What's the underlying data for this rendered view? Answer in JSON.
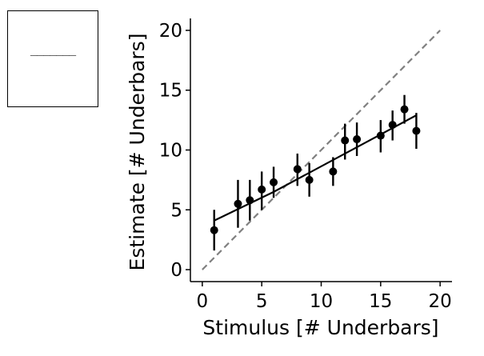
{
  "stimulus_panel": {
    "text": "_______"
  },
  "chart_data": {
    "type": "scatter",
    "title": "",
    "xlabel": "Stimulus [# Underbars]",
    "ylabel": "Estimate [# Underbars]",
    "xlim": [
      -1,
      21
    ],
    "ylim": [
      -1,
      21
    ],
    "xticks": [
      0,
      5,
      10,
      15,
      20
    ],
    "yticks": [
      0,
      5,
      10,
      15,
      20
    ],
    "grid": false,
    "legend": "none",
    "series": [
      {
        "kind": "points-with-errorbars",
        "color": "#000000",
        "points": [
          {
            "x": 1,
            "y": 3.3,
            "lo": 1.6,
            "hi": 5.0
          },
          {
            "x": 3,
            "y": 5.5,
            "lo": 3.5,
            "hi": 7.5
          },
          {
            "x": 4,
            "y": 5.8,
            "lo": 4.1,
            "hi": 7.5
          },
          {
            "x": 5,
            "y": 6.7,
            "lo": 5.0,
            "hi": 8.2
          },
          {
            "x": 6,
            "y": 7.3,
            "lo": 6.0,
            "hi": 8.6
          },
          {
            "x": 8,
            "y": 8.4,
            "lo": 7.0,
            "hi": 9.7
          },
          {
            "x": 9,
            "y": 7.5,
            "lo": 6.1,
            "hi": 8.9
          },
          {
            "x": 11,
            "y": 8.2,
            "lo": 7.0,
            "hi": 9.4
          },
          {
            "x": 12,
            "y": 10.8,
            "lo": 9.2,
            "hi": 12.2
          },
          {
            "x": 13,
            "y": 10.9,
            "lo": 9.5,
            "hi": 12.3
          },
          {
            "x": 15,
            "y": 11.2,
            "lo": 9.8,
            "hi": 12.5
          },
          {
            "x": 16,
            "y": 12.1,
            "lo": 10.8,
            "hi": 13.3
          },
          {
            "x": 17,
            "y": 13.4,
            "lo": 12.2,
            "hi": 14.6
          },
          {
            "x": 18,
            "y": 11.6,
            "lo": 10.1,
            "hi": 13.1
          }
        ]
      },
      {
        "kind": "fit-line",
        "color": "#000000",
        "x": [
          1,
          6,
          18
        ],
        "y": [
          4.1,
          6.5,
          12.9
        ]
      },
      {
        "kind": "identity-line",
        "color": "#808080",
        "dashed": true,
        "x": [
          0,
          20
        ],
        "y": [
          0,
          20
        ]
      }
    ]
  }
}
